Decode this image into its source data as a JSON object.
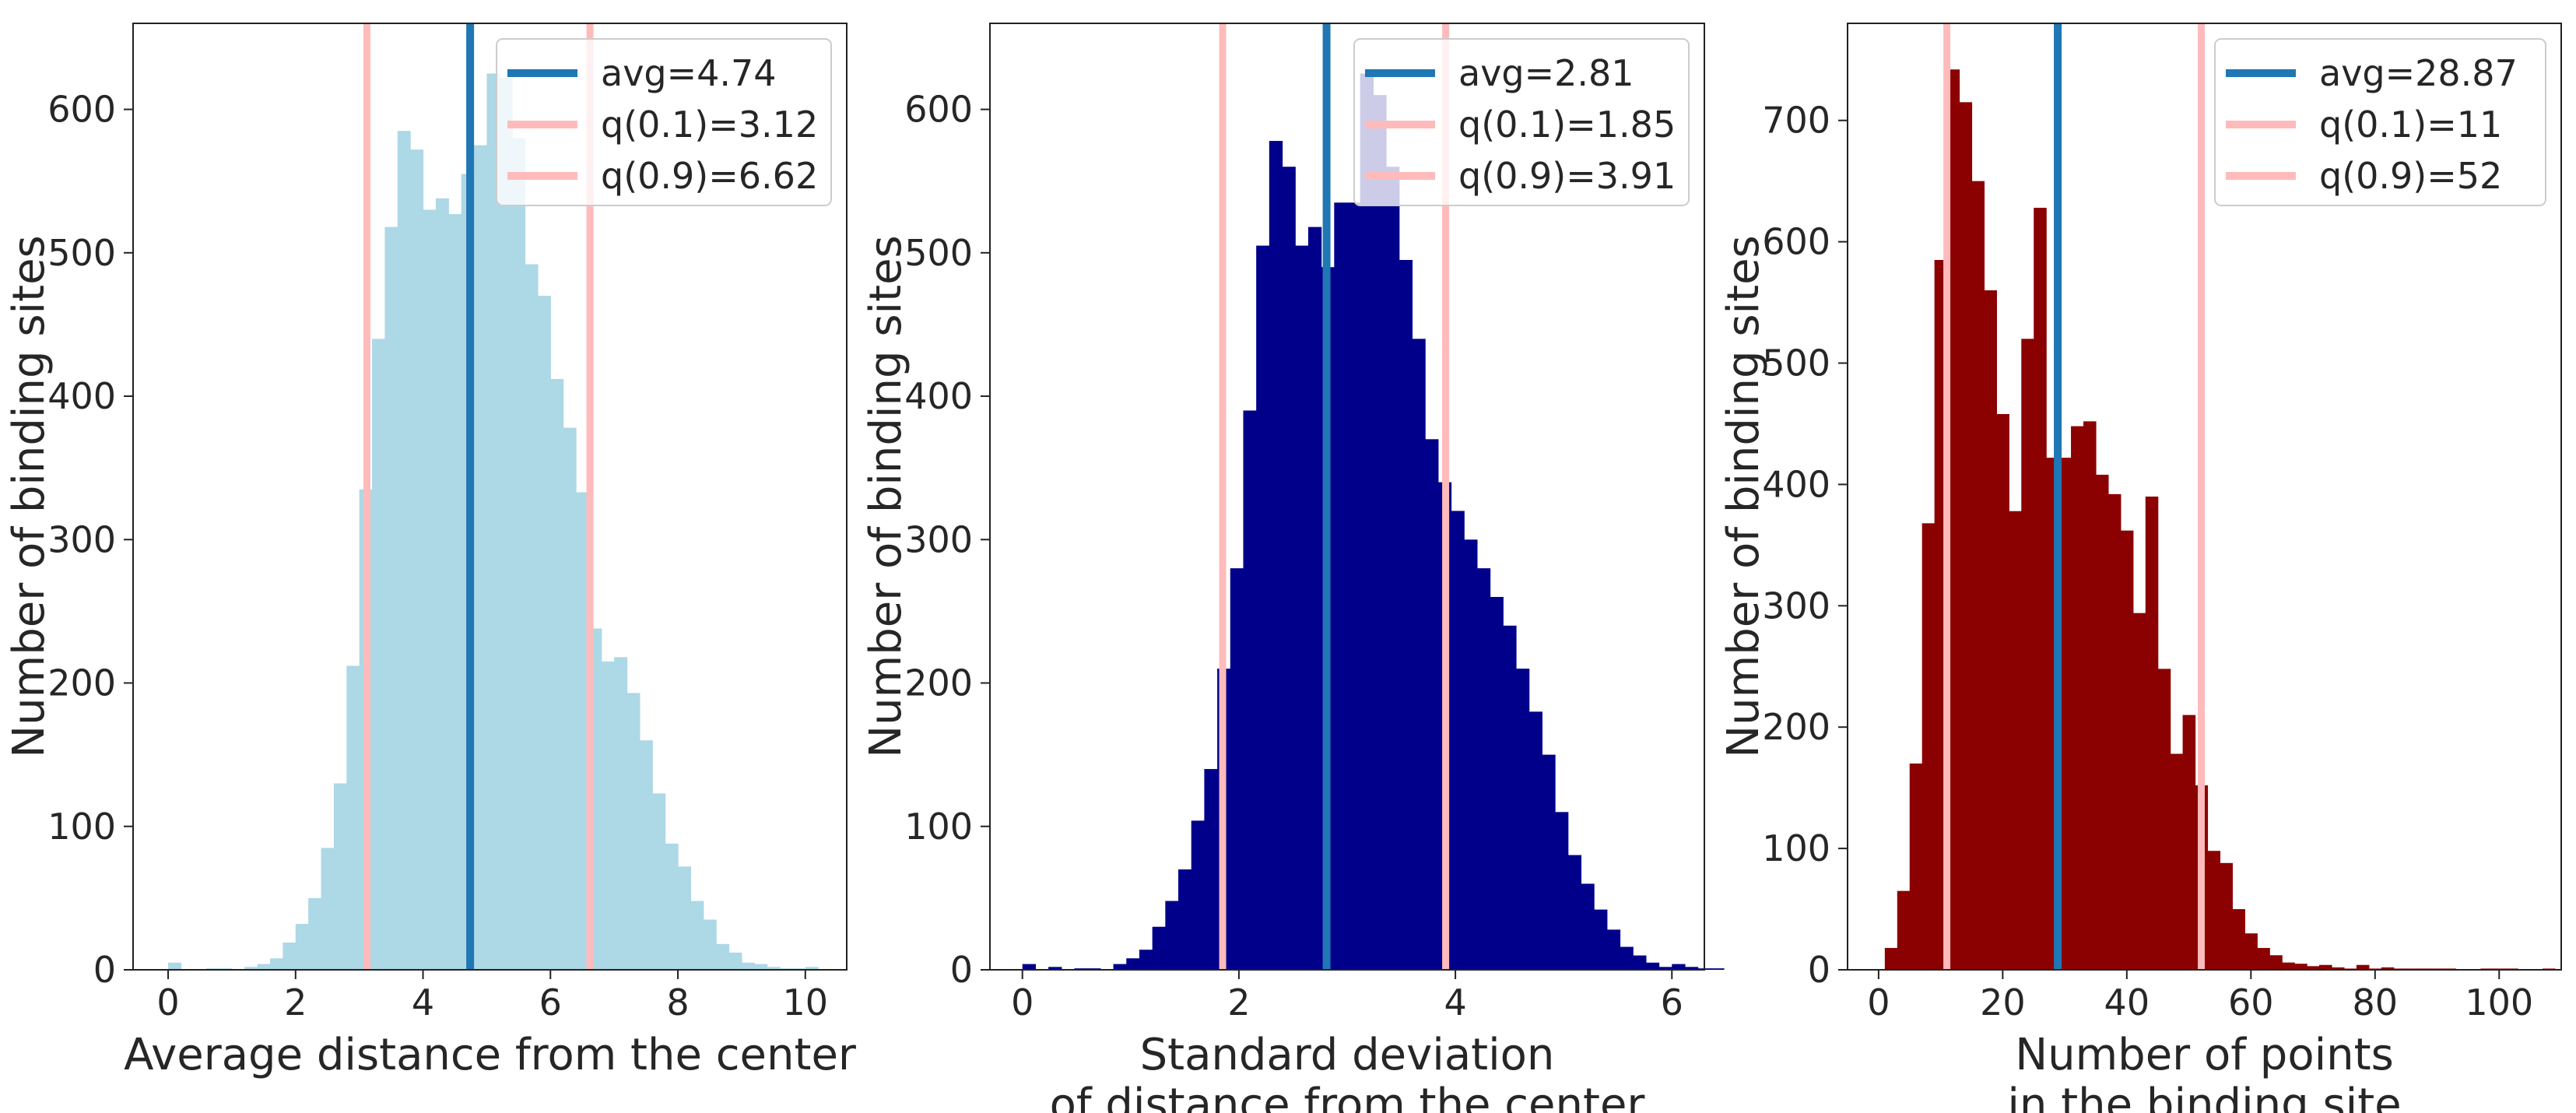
{
  "chart_data": [
    {
      "type": "bar",
      "id": "left",
      "xlabel": [
        "Average distance from the center"
      ],
      "ylabel": "Number of binding sites",
      "xlim": [
        -0.55,
        10.65
      ],
      "ylim": [
        0,
        660
      ],
      "xticks": [
        0,
        2,
        4,
        6,
        8,
        10
      ],
      "yticks": [
        0,
        100,
        200,
        300,
        400,
        500,
        600
      ],
      "bar_color": "#add8e6",
      "bins": {
        "start": 0,
        "width": 0.2,
        "counts": [
          5,
          0,
          0,
          1,
          1,
          0,
          2,
          4,
          8,
          19,
          32,
          50,
          85,
          130,
          212,
          335,
          440,
          518,
          585,
          572,
          530,
          538,
          527,
          555,
          575,
          625,
          622,
          580,
          492,
          470,
          412,
          378,
          333,
          238,
          215,
          218,
          193,
          160,
          123,
          88,
          72,
          48,
          35,
          18,
          12,
          5,
          4,
          2,
          1,
          1,
          2
        ]
      },
      "lines": [
        {
          "x": 4.74,
          "label": "avg=4.74",
          "color": "#1f77b4"
        },
        {
          "x": 3.12,
          "label": "q(0.1)=3.12",
          "color": "#ffbbbb"
        },
        {
          "x": 6.62,
          "label": "q(0.9)=6.62",
          "color": "#ffbbbb"
        }
      ],
      "legend": "top-right",
      "grid": false
    },
    {
      "type": "bar",
      "id": "middle",
      "xlabel": [
        "Standard deviation",
        "of distance from the center"
      ],
      "ylabel": "Number of binding sites",
      "xlim": [
        -0.3,
        6.3
      ],
      "ylim": [
        0,
        660
      ],
      "xticks": [
        0,
        2,
        4,
        6
      ],
      "yticks": [
        0,
        100,
        200,
        300,
        400,
        500,
        600
      ],
      "bar_color": "#00008b",
      "bins": {
        "start": 0,
        "width": 0.12,
        "counts": [
          4,
          0,
          2,
          0,
          1,
          1,
          0,
          4,
          8,
          14,
          30,
          48,
          70,
          104,
          140,
          210,
          280,
          390,
          505,
          578,
          560,
          505,
          518,
          490,
          535,
          535,
          625,
          610,
          560,
          495,
          440,
          370,
          340,
          320,
          300,
          280,
          260,
          240,
          210,
          180,
          150,
          110,
          80,
          60,
          42,
          28,
          16,
          10,
          5,
          2,
          4,
          2,
          1,
          1,
          0,
          0,
          0,
          0,
          0,
          0
        ]
      },
      "lines": [
        {
          "x": 2.81,
          "label": "avg=2.81",
          "color": "#1f77b4"
        },
        {
          "x": 1.85,
          "label": "q(0.1)=1.85",
          "color": "#ffbbbb"
        },
        {
          "x": 3.91,
          "label": "q(0.9)=3.91",
          "color": "#ffbbbb"
        }
      ],
      "legend": "top-right",
      "grid": false
    },
    {
      "type": "bar",
      "id": "right",
      "xlabel": [
        "Number of points",
        "in the binding site"
      ],
      "ylabel": "Number of binding sites",
      "xlim": [
        -5,
        110
      ],
      "ylim": [
        0,
        780
      ],
      "xticks": [
        0,
        20,
        40,
        60,
        80,
        100
      ],
      "yticks": [
        0,
        100,
        200,
        300,
        400,
        500,
        600,
        700
      ],
      "bar_color": "#8b0000",
      "bins": {
        "start": 1,
        "width": 2,
        "counts": [
          18,
          65,
          170,
          368,
          585,
          742,
          715,
          650,
          560,
          458,
          378,
          520,
          628,
          422,
          422,
          448,
          452,
          408,
          392,
          362,
          294,
          390,
          248,
          178,
          210,
          152,
          98,
          88,
          50,
          30,
          18,
          12,
          6,
          5,
          3,
          4,
          2,
          1,
          4,
          1,
          2,
          1,
          1,
          1,
          1,
          1,
          0,
          0,
          1,
          1,
          1,
          0,
          0,
          1
        ]
      },
      "lines": [
        {
          "x": 28.87,
          "label": "avg=28.87",
          "color": "#1f77b4"
        },
        {
          "x": 11,
          "label": "q(0.1)=11",
          "color": "#ffbbbb"
        },
        {
          "x": 52,
          "label": "q(0.9)=52",
          "color": "#ffbbbb"
        }
      ],
      "legend": "top-right",
      "grid": false
    }
  ]
}
